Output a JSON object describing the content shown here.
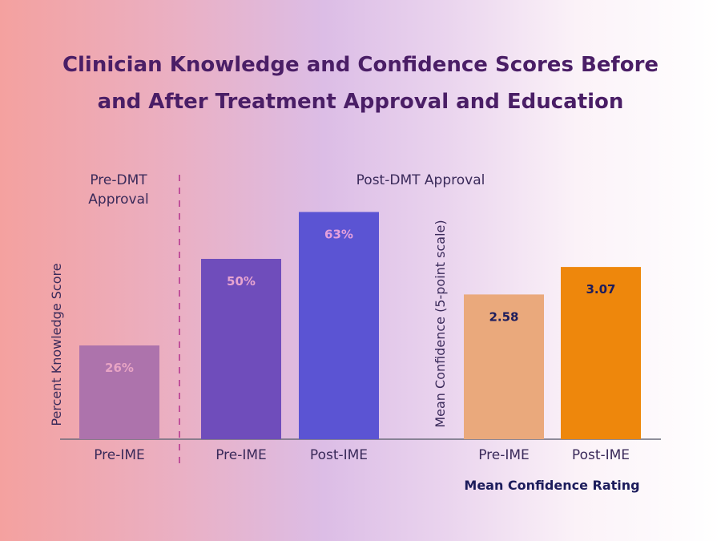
{
  "title_line1": "Clinician Knowledge and Confidence Scores Before",
  "title_line2": "and After Treatment Approval and Education",
  "group_pre_line1": "Pre-DMT",
  "group_pre_line2": "Approval",
  "group_post": "Post-DMT Approval",
  "colors": {
    "title": "#4a1e66",
    "knowledge_pre_dmt": "#ad73ac",
    "knowledge_pre_ime": "#6f4dbb",
    "knowledge_post_ime": "#5b54d3",
    "confidence_pre_ime": "#eaa97c",
    "confidence_post_ime": "#ee870c",
    "divider": "#c0509a"
  },
  "chart_data": [
    {
      "type": "bar",
      "ylabel": "Percent Knowledge Score",
      "xlabel": "",
      "categories": [
        "Pre-IME",
        "Pre-IME",
        "Post-IME"
      ],
      "values": [
        26,
        50,
        63
      ],
      "data_labels": [
        "26%",
        "50%",
        "63%"
      ],
      "groups": [
        "Pre-DMT Approval",
        "Post-DMT Approval",
        "Post-DMT Approval"
      ],
      "ylim": [
        0,
        100
      ],
      "grid": false
    },
    {
      "type": "bar",
      "ylabel": "Mean Confidence (5-point scale)",
      "xlabel": "Mean Confidence Rating",
      "categories": [
        "Pre-IME",
        "Post-IME"
      ],
      "values": [
        2.58,
        3.07
      ],
      "data_labels": [
        "2.58",
        "3.07"
      ],
      "ylim": [
        0,
        5
      ],
      "grid": false
    }
  ]
}
